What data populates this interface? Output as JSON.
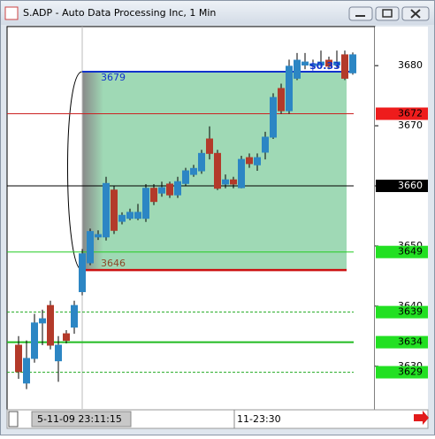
{
  "window": {
    "title": "S.ADP - Auto Data Processing Inc, 1 Min"
  },
  "chart_data": {
    "type": "candlestick",
    "ylim": [
      3622.9,
      3686.5
    ],
    "yticks": [
      3630,
      3640,
      3650,
      3660,
      3670,
      3680
    ],
    "up_color": "#2c86c4",
    "down_color": "#b33a2a",
    "open": [
      3633.5,
      3627.2,
      3631.3,
      3637.2,
      3640.1,
      3630.9,
      3635.4,
      3636.5,
      3642.4,
      3647.2,
      3651.5,
      3651.5,
      3659.3,
      3654.1,
      3654.6,
      3654.6,
      3654.6,
      3659.6,
      3658.8,
      3660.3,
      3658.5,
      3660.4,
      3661.9,
      3662.5,
      3667.8,
      3665.4,
      3660.3,
      3661,
      3659.7,
      3664.7,
      3663.5,
      3665.6,
      3668.1,
      3676.2,
      3672.5,
      3677.9,
      3680.1,
      3680,
      3680.1,
      3680.9,
      3680.1,
      3681.8,
      3678.8
    ],
    "high": [
      3635,
      3634.3,
      3638.7,
      3639.4,
      3640.9,
      3635,
      3636,
      3640.9,
      3649.5,
      3652.9,
      3652.6,
      3661.5,
      3660,
      3655.6,
      3656.2,
      3657,
      3660.3,
      3660.3,
      3660.7,
      3660.7,
      3661.5,
      3663,
      3663.5,
      3666,
      3669.9,
      3666,
      3661.9,
      3661.5,
      3665,
      3665.4,
      3665.4,
      3669,
      3675.4,
      3677,
      3681,
      3682.1,
      3682.1,
      3681,
      3682.5,
      3681.5,
      3682.5,
      3682.5,
      3682.2
    ],
    "low": [
      3627.9,
      3626.2,
      3630.6,
      3633.5,
      3632.8,
      3627.4,
      3633.8,
      3635.4,
      3641.8,
      3646.8,
      3651,
      3650.9,
      3652,
      3653.6,
      3654.3,
      3654.3,
      3654,
      3656.8,
      3658.2,
      3658,
      3658,
      3660,
      3661.5,
      3662,
      3664.4,
      3659.3,
      3659.6,
      3659.6,
      3659.6,
      3663,
      3662.5,
      3664.4,
      3667.8,
      3672,
      3672,
      3677.6,
      3679.4,
      3679.7,
      3679.7,
      3679.4,
      3679.7,
      3677.6,
      3678.5
    ],
    "close": [
      3629.1,
      3631.3,
      3637.2,
      3637.9,
      3633.5,
      3633.5,
      3634.3,
      3640.1,
      3648.7,
      3652.4,
      3651.9,
      3660.4,
      3652.6,
      3655.1,
      3655.6,
      3655.6,
      3659.6,
      3657.4,
      3659.7,
      3658.5,
      3660.7,
      3662.5,
      3662.9,
      3665.4,
      3665.4,
      3659.6,
      3661,
      3660.3,
      3664.4,
      3663.7,
      3664.7,
      3668.1,
      3674.7,
      3672.5,
      3679.9,
      3680.9,
      3680.6,
      3680.3,
      3680.6,
      3679.9,
      3680.6,
      3677.9,
      3681.8
    ],
    "levels": [
      {
        "value": 3672,
        "color": "#cc2222",
        "style": "solid",
        "box_color": "#ee1c1c",
        "text_color": "#000000"
      },
      {
        "value": 3660,
        "color": "#000000",
        "style": "solid",
        "box_color": "#000000",
        "text_color": "#ffffff"
      },
      {
        "value": 3649,
        "color": "#22cc22",
        "style": "solid",
        "box_color": "#22e022",
        "text_color": "#000000"
      },
      {
        "value": 3639,
        "color": "#22aa22",
        "style": "dashed",
        "box_color": "#22e022",
        "text_color": "#000000"
      },
      {
        "value": 3634,
        "color": "#22bb22",
        "style": "thick",
        "box_color": "#22e022",
        "text_color": "#000000"
      },
      {
        "value": 3629,
        "color": "#22aa22",
        "style": "dashed",
        "box_color": "#22e022",
        "text_color": "#000000"
      }
    ],
    "range_box": {
      "top": 3679,
      "bottom": 3646,
      "top_color": "#1133cc",
      "bottom_color": "#cc1111",
      "fill": "#9fd9b5",
      "change_label": "$0.33"
    },
    "cursor_label": "5-11-09 23:11:15",
    "time_label": "11-23:30"
  }
}
